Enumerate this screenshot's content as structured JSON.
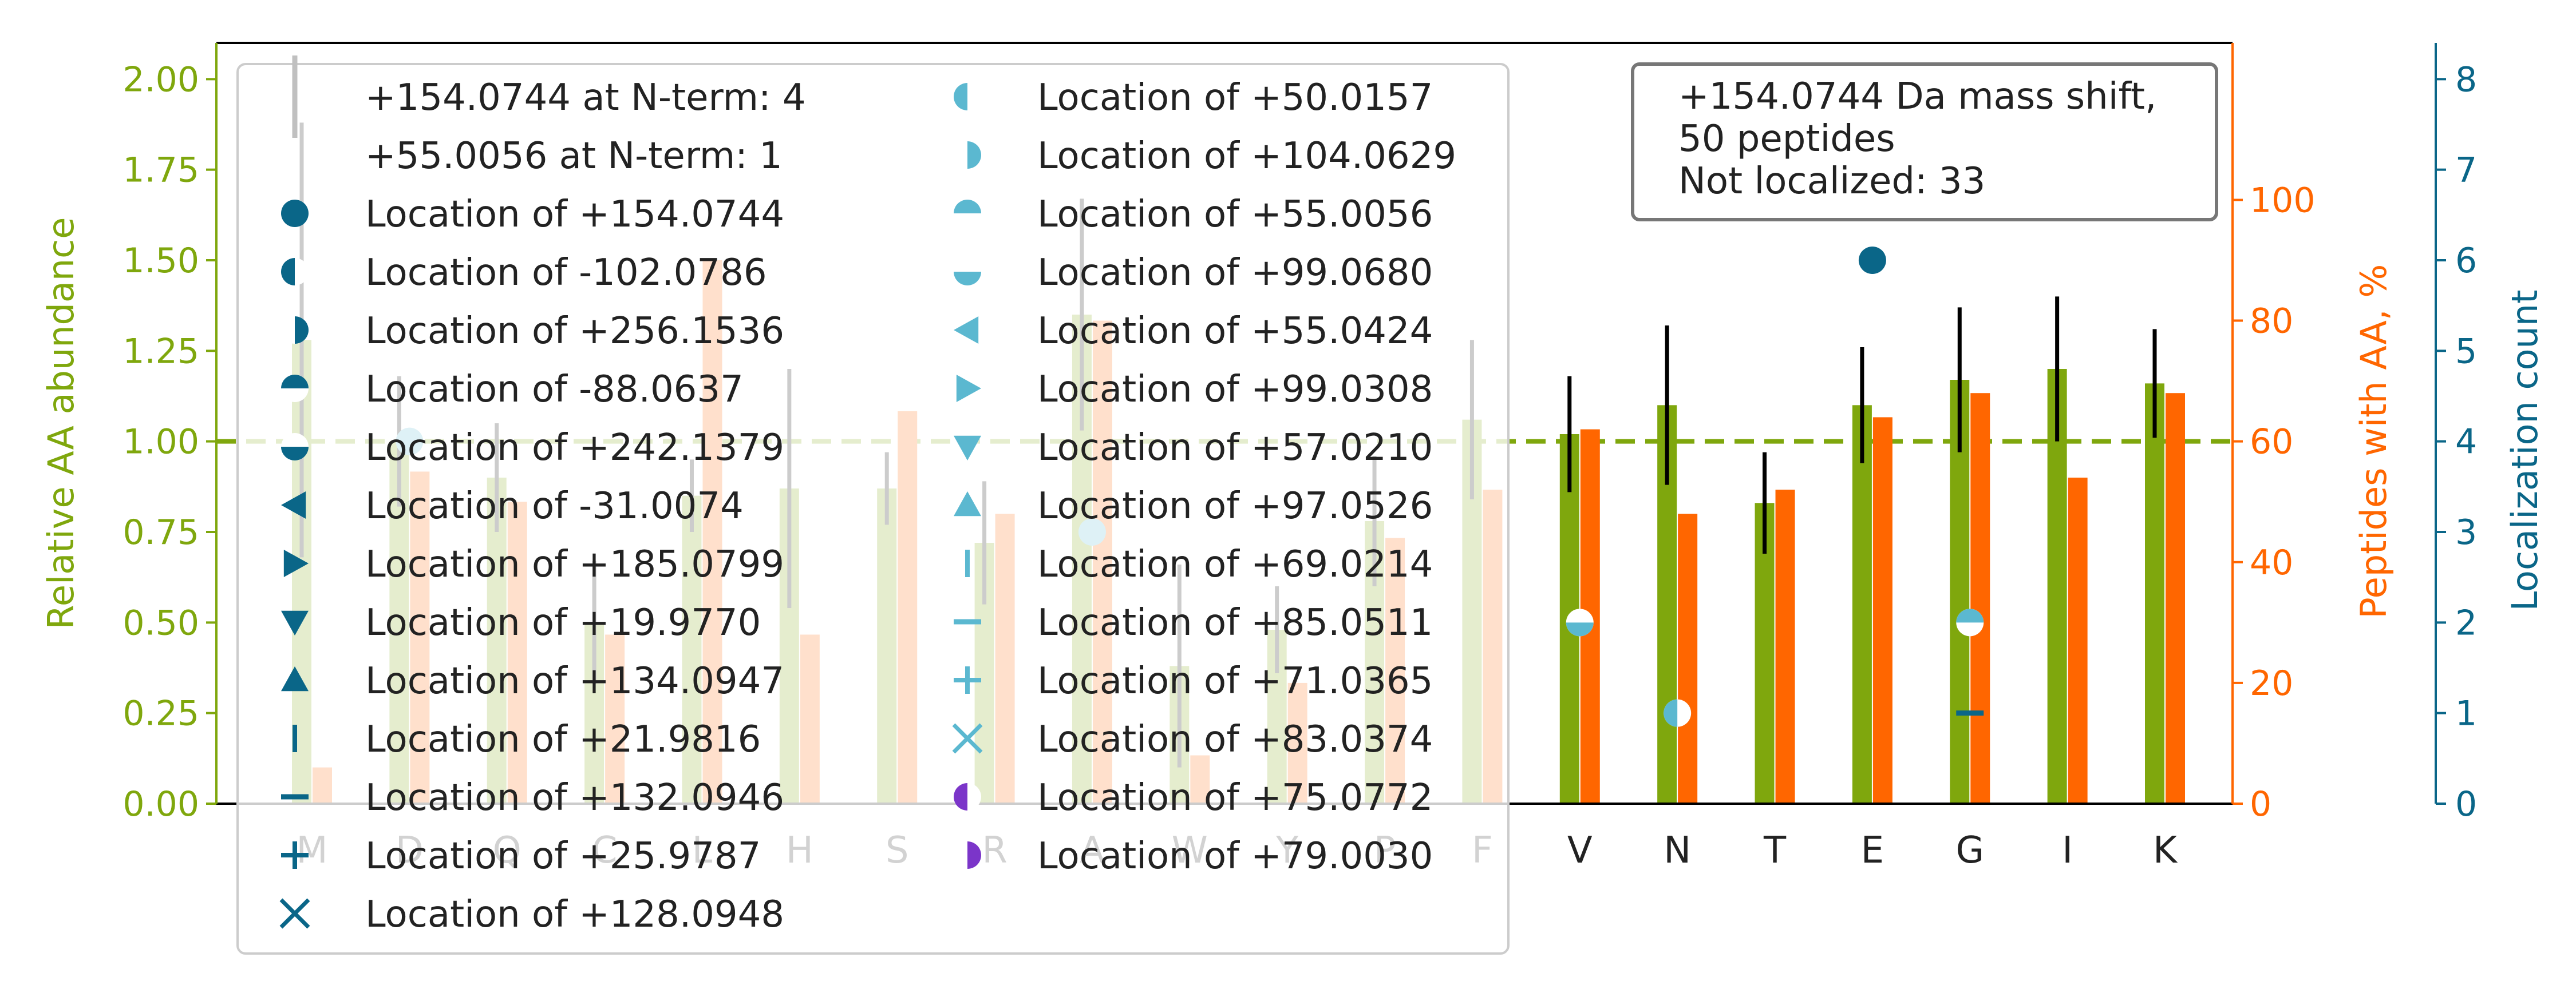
{
  "chart_data": {
    "type": "bar",
    "categories": [
      "M",
      "D",
      "Q",
      "C",
      "L",
      "H",
      "S",
      "R",
      "A",
      "W",
      "Y",
      "P",
      "F",
      "V",
      "N",
      "T",
      "E",
      "G",
      "I",
      "K"
    ],
    "series": [
      {
        "values": [
          1.28,
          1.0,
          0.9,
          0.5,
          0.85,
          0.87,
          0.87,
          0.72,
          1.35,
          0.38,
          0.48,
          0.78,
          1.06,
          1.02,
          1.1,
          0.83,
          1.1,
          1.17,
          1.2,
          1.16
        ],
        "errors": [
          0.6,
          0.18,
          0.15,
          0.17,
          0.1,
          0.33,
          0.1,
          0.17,
          0.32,
          0.28,
          0.12,
          0.18,
          0.22,
          0.16,
          0.22,
          0.14,
          0.16,
          0.2,
          0.2,
          0.15
        ],
        "axis": "Relative AA abundance",
        "color": "#7fa70d"
      },
      {
        "values": [
          6,
          55,
          50,
          28,
          90,
          28,
          65,
          48,
          80,
          8,
          20,
          44,
          52,
          62,
          48,
          52,
          64,
          68,
          54,
          68
        ],
        "axis": "Peptides with AA, %",
        "color": "#ff6600"
      }
    ],
    "y_left": {
      "label": "Relative AA abundance",
      "ylim": [
        0,
        2.1
      ],
      "ticks": [
        "0.00",
        "0.25",
        "0.50",
        "0.75",
        "1.00",
        "1.25",
        "1.50",
        "1.75",
        "2.00"
      ],
      "color": "#7fa70d"
    },
    "y_right": {
      "label": "Peptides with AA, %",
      "ylim": [
        0,
        126
      ],
      "ticks": [
        "0",
        "20",
        "40",
        "60",
        "80",
        "100"
      ],
      "color": "#ff6600"
    },
    "y_right2": {
      "label": "Localization count",
      "ylim": [
        0,
        8.4
      ],
      "ticks": [
        "0",
        "1",
        "2",
        "3",
        "4",
        "5",
        "6",
        "7",
        "8"
      ],
      "color": "#0a6688"
    },
    "reference_line": {
      "y": 1.0,
      "style": "dashed",
      "color": "#7fa70d"
    },
    "localization_markers": [
      {
        "category": "D",
        "count": 4,
        "marker": "circle",
        "color": "#5bb8d0"
      },
      {
        "category": "A",
        "count": 3,
        "marker": "circle",
        "color": "#5bb8d0"
      },
      {
        "category": "V",
        "count": 2,
        "marker": "half-bottom",
        "color": "#5bb8d0"
      },
      {
        "category": "N",
        "count": 1,
        "marker": "half-left",
        "color": "#5bb8d0"
      },
      {
        "category": "E",
        "count": 6,
        "marker": "circle",
        "color": "#0a6688"
      },
      {
        "category": "G",
        "count": 2,
        "marker": "half-top",
        "color": "#5bb8d0"
      },
      {
        "category": "G",
        "count": 1,
        "marker": "dash",
        "color": "#0a6688"
      }
    ],
    "legend": {
      "placement": "upper-left",
      "entries": [
        {
          "label": "+154.0744 at N-term: 4",
          "marker": "vline",
          "color": "#c0c0c0"
        },
        {
          "label": "+55.0056 at N-term: 1",
          "marker": "none",
          "color": "#c0c0c0"
        },
        {
          "label": "Location of +154.0744",
          "marker": "circle",
          "color": "#0a6688"
        },
        {
          "label": "Location of -102.0786",
          "marker": "half-left",
          "color": "#0a6688"
        },
        {
          "label": "Location of +256.1536",
          "marker": "half-right",
          "color": "#0a6688"
        },
        {
          "label": "Location of -88.0637",
          "marker": "half-top",
          "color": "#0a6688"
        },
        {
          "label": "Location of +242.1379",
          "marker": "half-bottom",
          "color": "#0a6688"
        },
        {
          "label": "Location of -31.0074",
          "marker": "tri-left",
          "color": "#0a6688"
        },
        {
          "label": "Location of +185.0799",
          "marker": "tri-right",
          "color": "#0a6688"
        },
        {
          "label": "Location of +19.9770",
          "marker": "tri-down",
          "color": "#0a6688"
        },
        {
          "label": "Location of +134.0947",
          "marker": "tri-up",
          "color": "#0a6688"
        },
        {
          "label": "Location of +21.9816",
          "marker": "vbar",
          "color": "#0a6688"
        },
        {
          "label": "Location of +132.0946",
          "marker": "hbar",
          "color": "#0a6688"
        },
        {
          "label": "Location of +25.9787",
          "marker": "plus",
          "color": "#0a6688"
        },
        {
          "label": "Location of +128.0948",
          "marker": "x",
          "color": "#0a6688"
        },
        {
          "label": "Location of +50.0157",
          "marker": "half-left",
          "color": "#5bb8d0"
        },
        {
          "label": "Location of +104.0629",
          "marker": "half-right",
          "color": "#5bb8d0"
        },
        {
          "label": "Location of +55.0056",
          "marker": "half-top",
          "color": "#5bb8d0"
        },
        {
          "label": "Location of +99.0680",
          "marker": "half-bottom",
          "color": "#5bb8d0"
        },
        {
          "label": "Location of +55.0424",
          "marker": "tri-left",
          "color": "#5bb8d0"
        },
        {
          "label": "Location of +99.0308",
          "marker": "tri-right",
          "color": "#5bb8d0"
        },
        {
          "label": "Location of +57.0210",
          "marker": "tri-down",
          "color": "#5bb8d0"
        },
        {
          "label": "Location of +97.0526",
          "marker": "tri-up",
          "color": "#5bb8d0"
        },
        {
          "label": "Location of +69.0214",
          "marker": "vbar",
          "color": "#5bb8d0"
        },
        {
          "label": "Location of +85.0511",
          "marker": "hbar",
          "color": "#5bb8d0"
        },
        {
          "label": "Location of +71.0365",
          "marker": "plus",
          "color": "#5bb8d0"
        },
        {
          "label": "Location of +83.0374",
          "marker": "x",
          "color": "#5bb8d0"
        },
        {
          "label": "Location of +75.0772",
          "marker": "half-left",
          "color": "#7b35c9"
        },
        {
          "label": "Location of +79.0030",
          "marker": "half-right",
          "color": "#7b35c9"
        }
      ]
    },
    "info_box": [
      "+154.0744 Da mass shift,",
      "50 peptides",
      "Not localized: 33"
    ]
  }
}
